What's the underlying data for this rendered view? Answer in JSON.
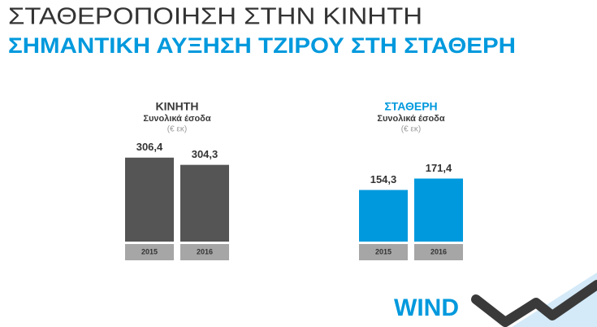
{
  "header": {
    "line1": "ΣΤΑΘΕΡΟΠΟΙΗΣΗ ΣΤΗΝ ΚΙΝΗΤΗ",
    "line2": "ΣΗΜΑΝΤΙΚΗ ΑΥΞΗΣΗ ΤΖΙΡΟΥ ΣΤΗ ΣΤΑΘΕΡΗ"
  },
  "logo": "WIND",
  "chart_data": [
    {
      "type": "bar",
      "title": "ΚΙΝΗΤΗ",
      "subtitle": "Συνολικά έσοδα",
      "unit": "(€ εκ)",
      "title_color": "#3a3a3a",
      "categories": [
        "2015",
        "2016"
      ],
      "values": [
        306.4,
        304.3
      ],
      "value_labels": [
        "306,4",
        "304,3"
      ],
      "color": "#555555",
      "category_color": "#a6a6a6",
      "ylim": [
        282,
        308
      ]
    },
    {
      "type": "bar",
      "title": "ΣΤΑΘΕΡΗ",
      "subtitle": "Συνολικά έσοδα",
      "unit": "(€ εκ)",
      "title_color": "#0099dd",
      "categories": [
        "2015",
        "2016"
      ],
      "values": [
        154.3,
        171.4
      ],
      "value_labels": [
        "154,3",
        "171,4"
      ],
      "color": "#0099dd",
      "category_color": "#a6a6a6",
      "ylim": [
        77,
        211
      ]
    }
  ]
}
